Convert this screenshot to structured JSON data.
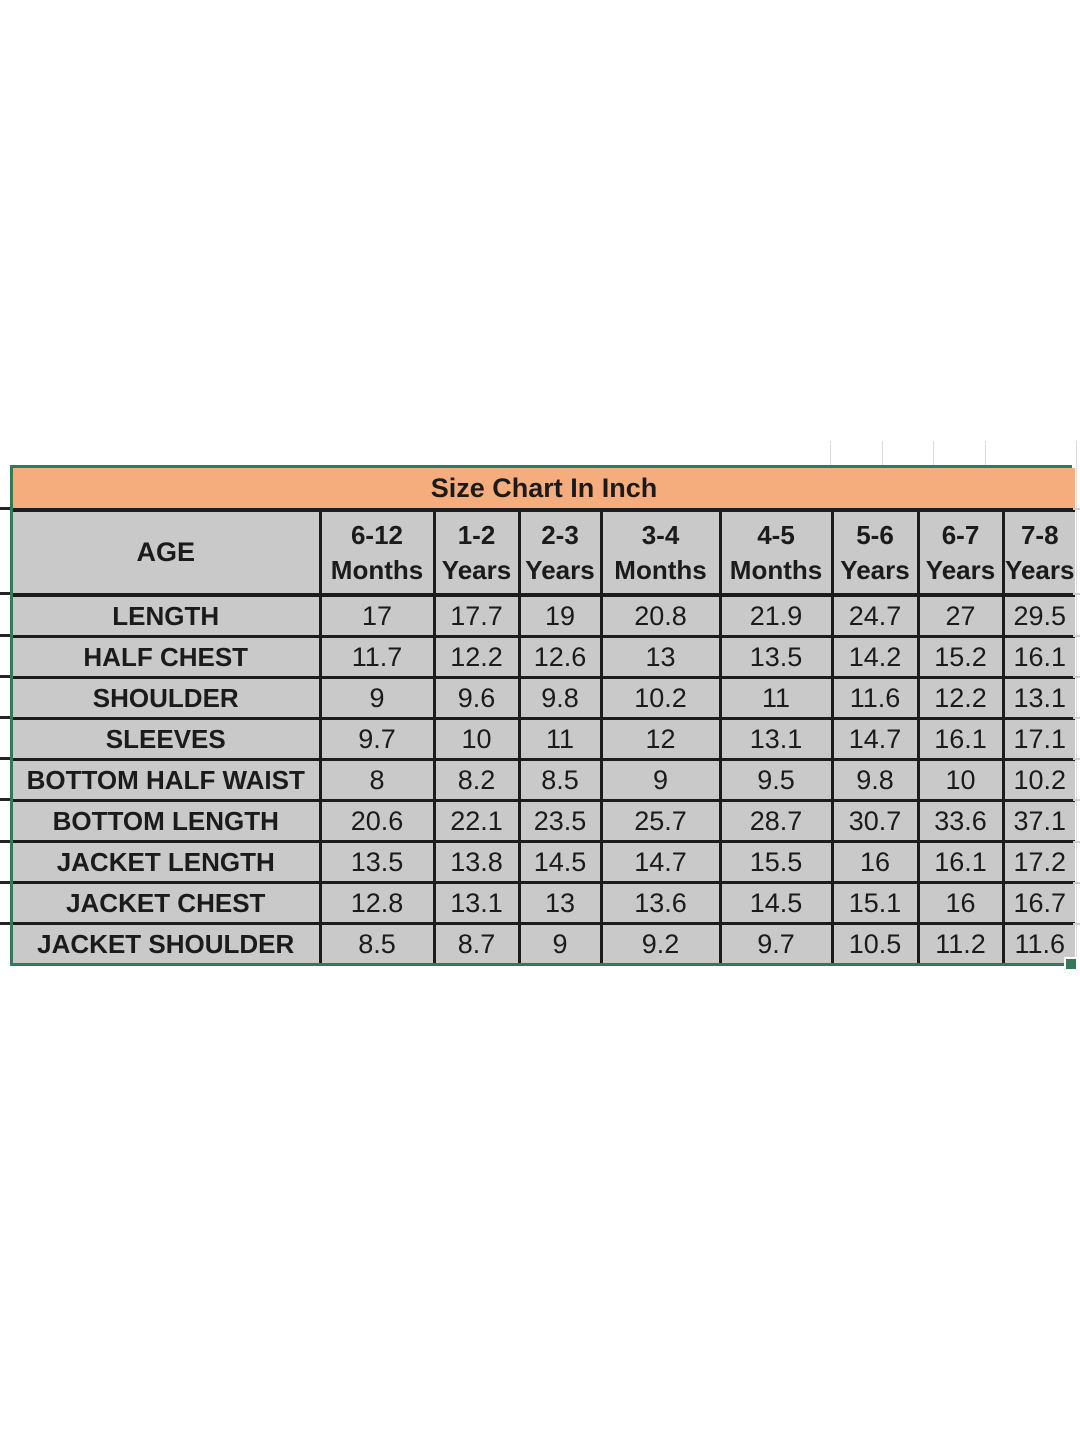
{
  "size_chart": {
    "title": "Size Chart In Inch",
    "age_header": "AGE",
    "columns": [
      {
        "range": "6-12",
        "unit": "Months"
      },
      {
        "range": "1-2",
        "unit": "Years"
      },
      {
        "range": "2-3",
        "unit": "Years"
      },
      {
        "range": "3-4",
        "unit": "Months"
      },
      {
        "range": "4-5",
        "unit": "Months"
      },
      {
        "range": "5-6",
        "unit": "Years"
      },
      {
        "range": "6-7",
        "unit": "Years"
      },
      {
        "range": "7-8",
        "unit": "Years"
      }
    ],
    "rows": [
      {
        "label": "LENGTH",
        "values": [
          "17",
          "17.7",
          "19",
          "20.8",
          "21.9",
          "24.7",
          "27",
          "29.5"
        ]
      },
      {
        "label": "HALF CHEST",
        "values": [
          "11.7",
          "12.2",
          "12.6",
          "13",
          "13.5",
          "14.2",
          "15.2",
          "16.1"
        ]
      },
      {
        "label": "SHOULDER",
        "values": [
          "9",
          "9.6",
          "9.8",
          "10.2",
          "11",
          "11.6",
          "12.2",
          "13.1"
        ]
      },
      {
        "label": "SLEEVES",
        "values": [
          "9.7",
          "10",
          "11",
          "12",
          "13.1",
          "14.7",
          "16.1",
          "17.1"
        ]
      },
      {
        "label": "BOTTOM HALF WAIST",
        "values": [
          "8",
          "8.2",
          "8.5",
          "9",
          "9.5",
          "9.8",
          "10",
          "10.2"
        ]
      },
      {
        "label": "BOTTOM LENGTH",
        "values": [
          "20.6",
          "22.1",
          "23.5",
          "25.7",
          "28.7",
          "30.7",
          "33.6",
          "37.1"
        ]
      },
      {
        "label": "JACKET LENGTH",
        "values": [
          "13.5",
          "13.8",
          "14.5",
          "14.7",
          "15.5",
          "16",
          "16.1",
          "17.2"
        ]
      },
      {
        "label": "JACKET CHEST",
        "values": [
          "12.8",
          "13.1",
          "13",
          "13.6",
          "14.5",
          "15.1",
          "16",
          "16.7"
        ]
      },
      {
        "label": "JACKET SHOULDER",
        "values": [
          "8.5",
          "8.7",
          "9",
          "9.2",
          "9.7",
          "10.5",
          "11.2",
          "11.6"
        ]
      }
    ],
    "colors": {
      "title_bg": "#F6AD7D",
      "cell_bg": "#C9C9C9",
      "grid_line": "#1C1C1C",
      "selection_border": "#337A58",
      "text": "#1B1B1B",
      "page_bg": "#FFFFFF"
    }
  }
}
